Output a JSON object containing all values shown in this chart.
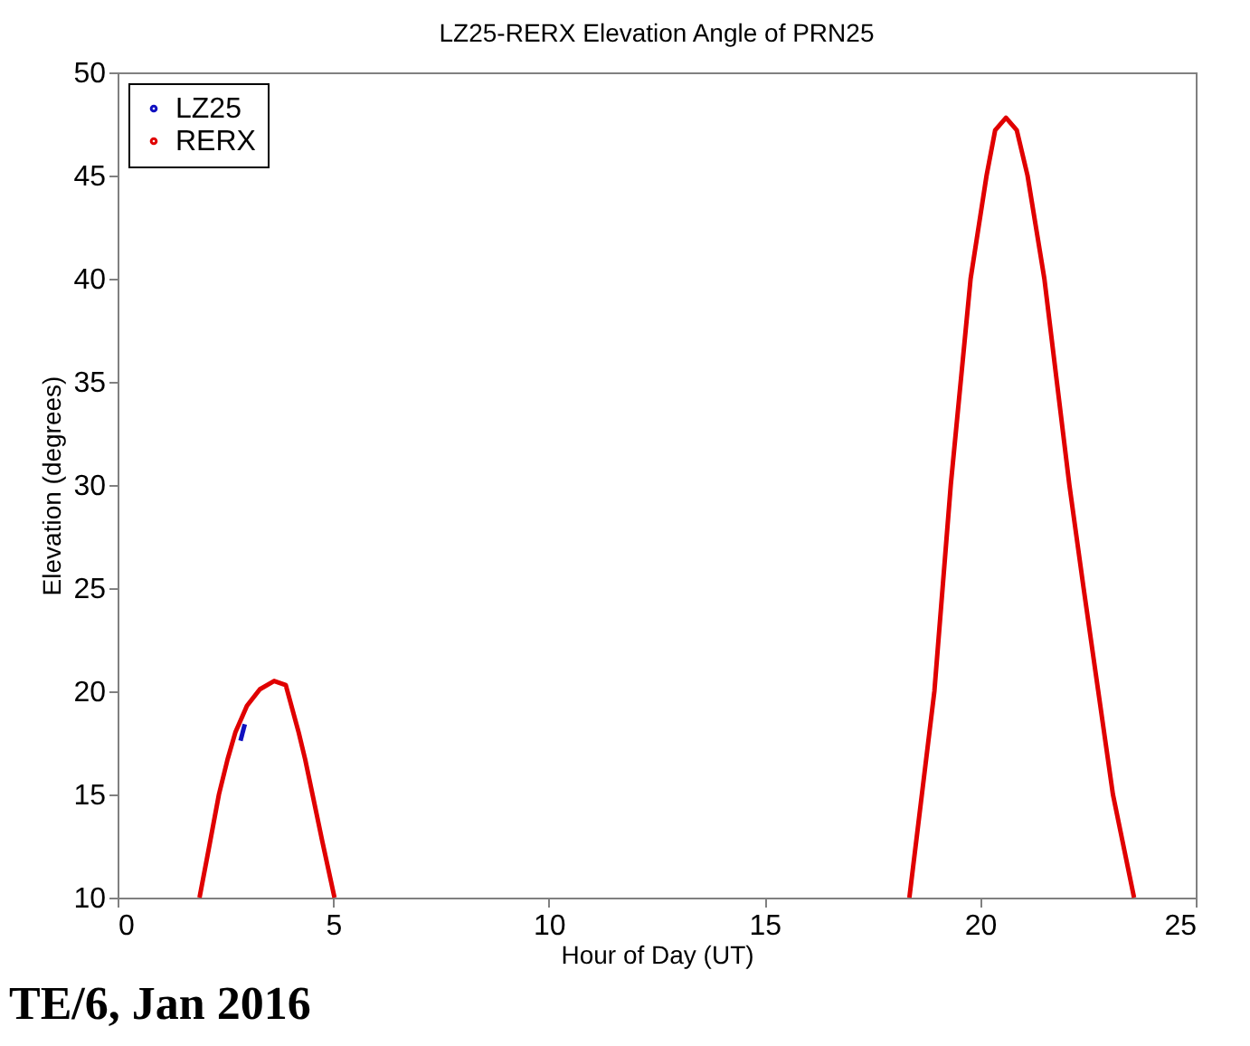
{
  "chart_data": {
    "type": "line",
    "title": "LZ25-RERX Elevation Angle of PRN25",
    "xlabel": "Hour of Day (UT)",
    "ylabel": "Elevation (degrees)",
    "xlim": [
      0,
      25
    ],
    "xticks": [
      0,
      5,
      10,
      15,
      20,
      25
    ],
    "ylim": [
      10,
      50
    ],
    "yticks": [
      10,
      15,
      20,
      25,
      30,
      35,
      40,
      45,
      50
    ],
    "grid": false,
    "legend": "top left",
    "annotations": [
      "TE/6, Jan 2016"
    ],
    "series": [
      {
        "name": "LZ25",
        "color": "#1010c0",
        "x": [
          2.85,
          2.95
        ],
        "values": [
          17.6,
          18.4
        ]
      },
      {
        "name": "RERX",
        "color": "#e00000",
        "x": [
          1.9,
          2.1,
          2.35,
          2.55,
          2.73,
          3.0,
          3.3,
          3.63,
          3.9,
          4.2,
          4.35,
          4.52,
          4.75,
          5.03,
          null,
          18.36,
          18.65,
          18.94,
          19.13,
          19.32,
          19.55,
          19.78,
          20.15,
          20.35,
          20.6,
          20.85,
          21.1,
          21.49,
          21.78,
          22.07,
          22.4,
          22.74,
          23.08,
          23.57
        ],
        "values": [
          10,
          12.2,
          15,
          16.7,
          18,
          19.3,
          20.1,
          20.5,
          20.3,
          18,
          16.7,
          15,
          12.7,
          10,
          null,
          10,
          15,
          20,
          25,
          30,
          35,
          40,
          45,
          47.2,
          47.8,
          47.2,
          45,
          40,
          35,
          30,
          25,
          20,
          15,
          10
        ]
      }
    ]
  }
}
